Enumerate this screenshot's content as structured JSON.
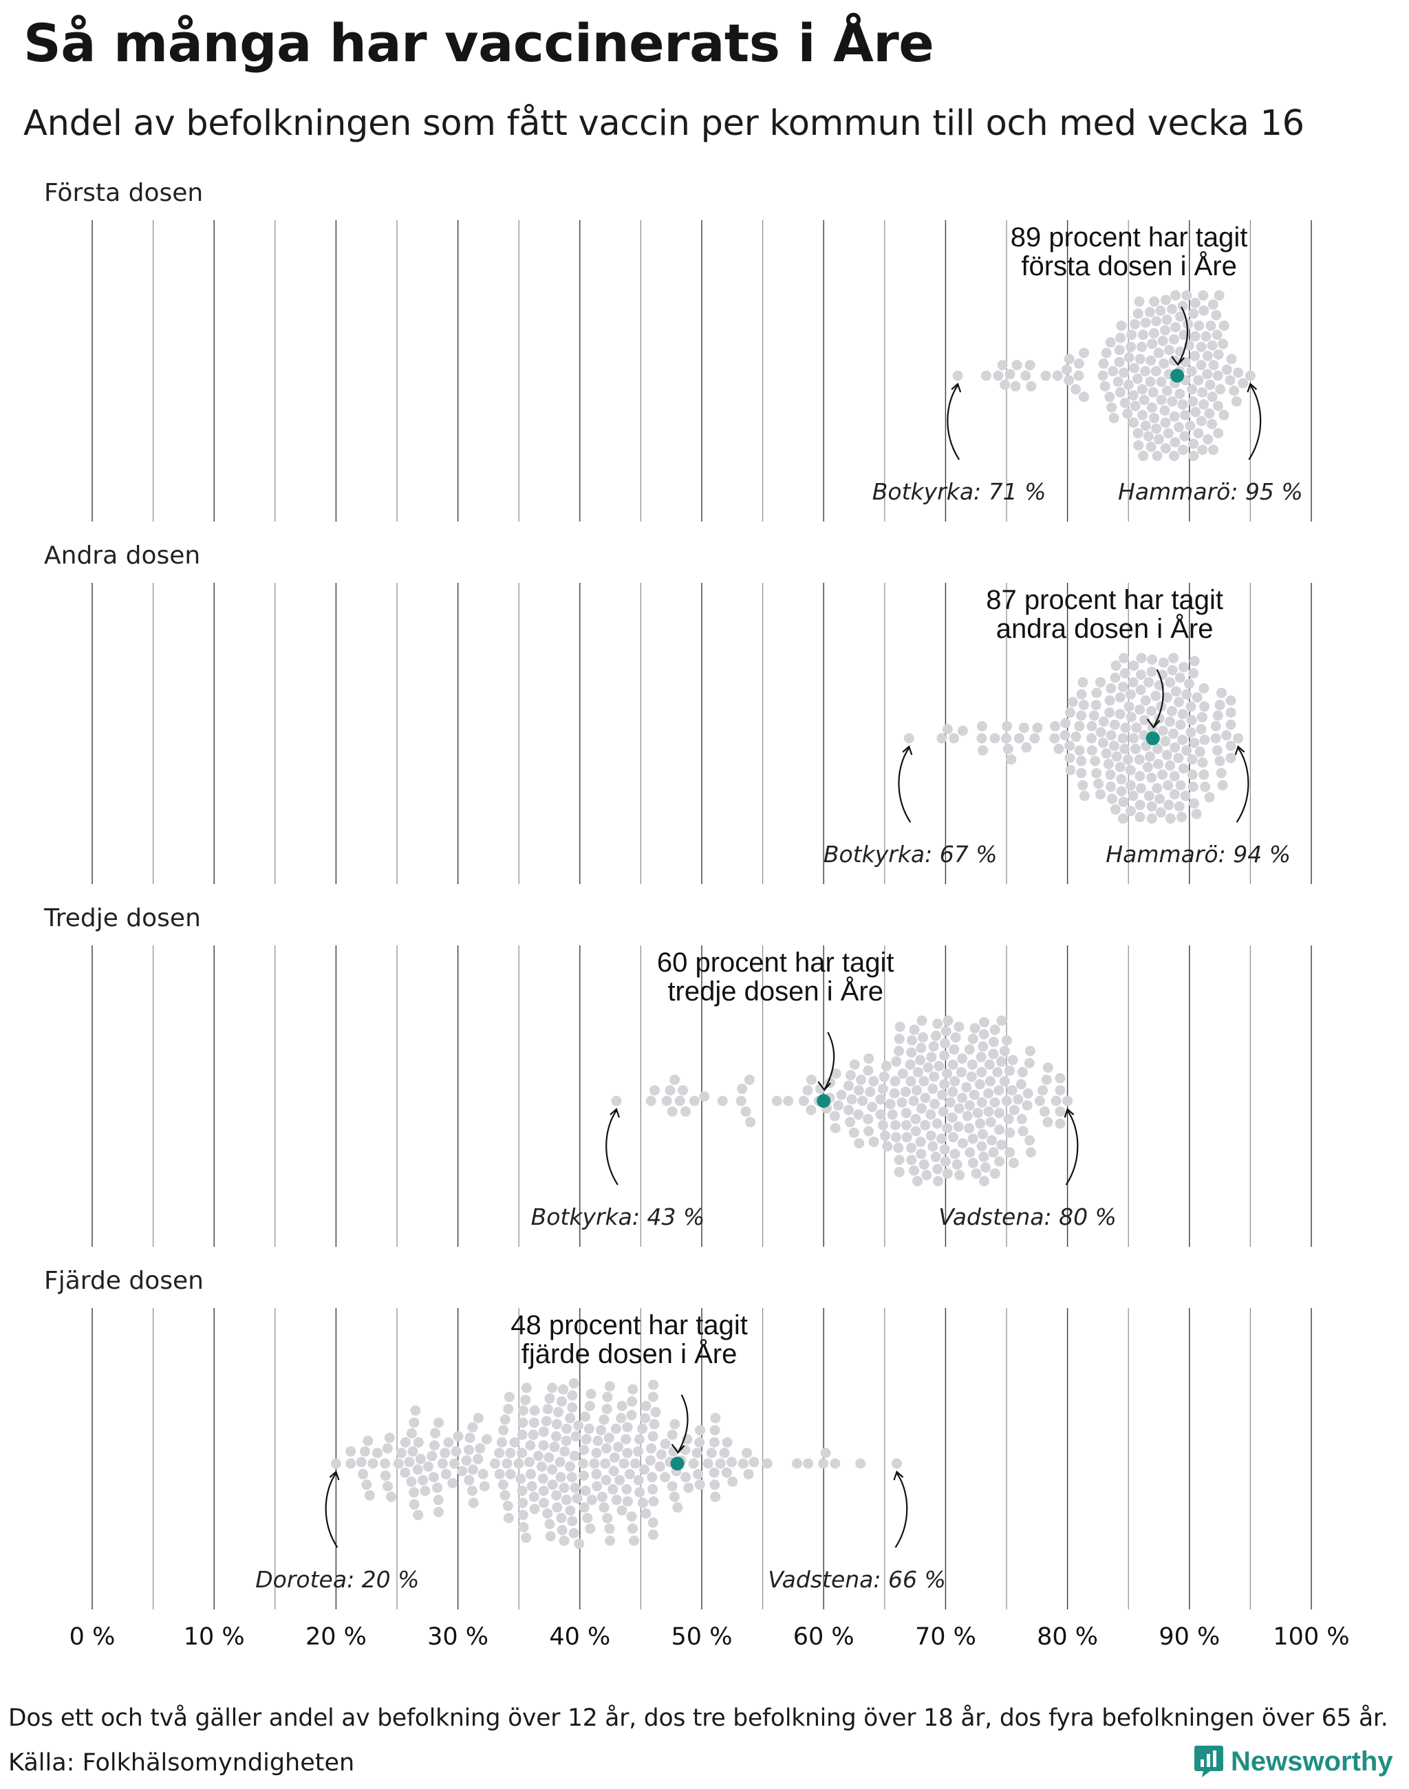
{
  "title": "Så många har vaccinerats i Åre",
  "subtitle": "Andel av befolkningen som fått vaccin per kommun till och med vecka 16",
  "footnote": "Dos ett och två gäller andel av befolkning över 12 år, dos tre befolkning över 18 år, dos fyra befolkningen över 65 år.",
  "source": "Källa: Folkhälsomyndigheten",
  "logo": {
    "text": "Newsworthy",
    "icon": "newsworthy-logo-icon"
  },
  "colors": {
    "highlight": "#128a7f",
    "other_municipalities": "#d4d3d8",
    "brand": "#1f8e83"
  },
  "chart_data": {
    "type": "beeswarm",
    "x_ticks": [
      "0 %",
      "10 %",
      "20 %",
      "30 %",
      "40 %",
      "50 %",
      "60 %",
      "70 %",
      "80 %",
      "90 %",
      "100 %"
    ],
    "xlim": [
      0,
      100
    ],
    "grid": "vertical lines every 5 %",
    "highlight_municipality": "Åre",
    "panels": [
      {
        "label": "Första dosen",
        "highlight": {
          "value": 89,
          "text_line1": "89 procent har tagit",
          "text_line2": "första dosen i Åre"
        },
        "min": {
          "name": "Botkyrka",
          "value": 71,
          "text": "Botkyrka: 71 %"
        },
        "max": {
          "name": "Hammarö",
          "value": 95,
          "text": "Hammarö: 95 %"
        },
        "distribution": {
          "low": 71,
          "mode": 89,
          "high": 95,
          "spread": 2.3,
          "n": 290
        }
      },
      {
        "label": "Andra dosen",
        "highlight": {
          "value": 87,
          "text_line1": "87 procent har tagit",
          "text_line2": "andra dosen i Åre"
        },
        "min": {
          "name": "Botkyrka",
          "value": 67,
          "text": "Botkyrka: 67 %"
        },
        "max": {
          "name": "Hammarö",
          "value": 94,
          "text": "Hammarö: 94 %"
        },
        "distribution": {
          "low": 67,
          "mode": 87,
          "high": 94,
          "spread": 2.8,
          "n": 290
        }
      },
      {
        "label": "Tredje dosen",
        "highlight": {
          "value": 60,
          "text_line1": "60 procent har tagit",
          "text_line2": "tredje dosen i Åre"
        },
        "min": {
          "name": "Botkyrka",
          "value": 43,
          "text": "Botkyrka: 43 %"
        },
        "max": {
          "name": "Vadstena",
          "value": 80,
          "text": "Vadstena: 80 %"
        },
        "distribution": {
          "low": 43,
          "mode": 70,
          "high": 80,
          "spread": 4.3,
          "n": 290
        }
      },
      {
        "label": "Fjärde dosen",
        "highlight": {
          "value": 48,
          "text_line1": "48 procent har tagit",
          "text_line2": "fjärde dosen i Åre"
        },
        "min": {
          "name": "Dorotea",
          "value": 20,
          "text": "Dorotea: 20 %"
        },
        "max": {
          "name": "Vadstena",
          "value": 66,
          "text": "Vadstena: 66 %"
        },
        "distribution": {
          "low": 20,
          "mode": 40,
          "high": 66,
          "spread": 7.5,
          "n": 290
        }
      }
    ]
  }
}
